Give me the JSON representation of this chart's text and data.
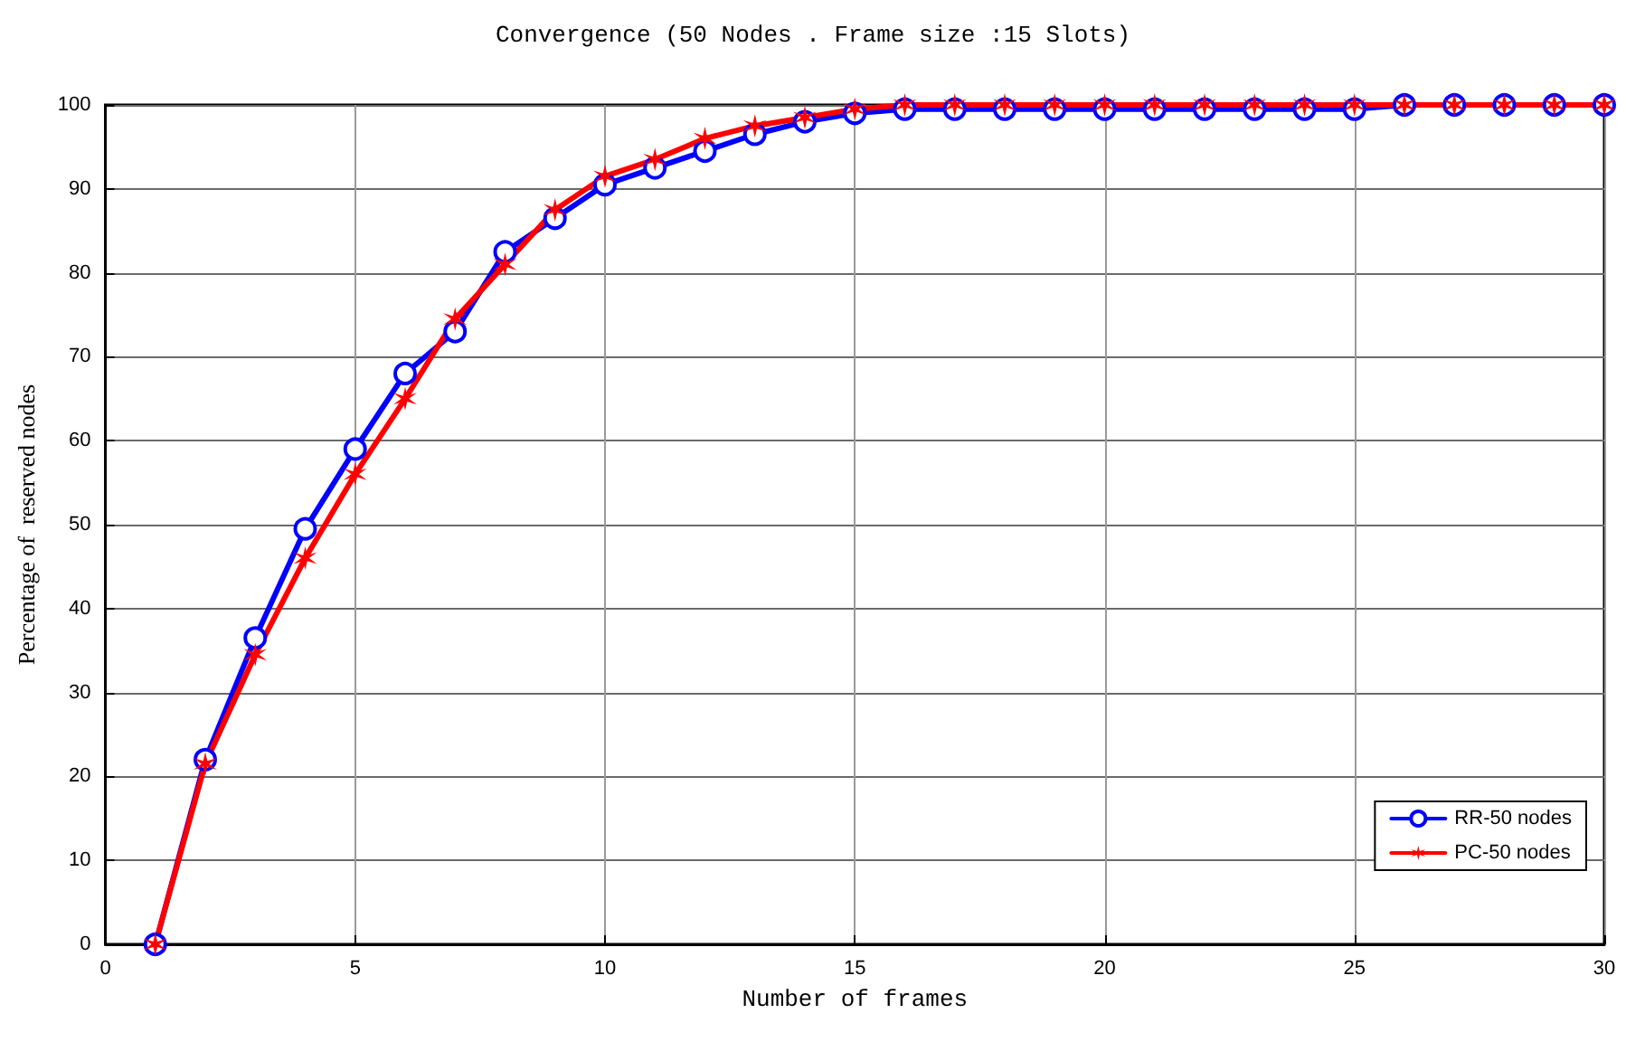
{
  "chart_data": {
    "type": "line",
    "title": "Convergence (50 Nodes . Frame size :15 Slots)",
    "xlabel": "Number of frames",
    "ylabel": "Percentage of  reserved nodes",
    "x": [
      1,
      2,
      3,
      4,
      5,
      6,
      7,
      8,
      9,
      10,
      11,
      12,
      13,
      14,
      15,
      16,
      17,
      18,
      19,
      20,
      21,
      22,
      23,
      24,
      25,
      26,
      27,
      28,
      29,
      30
    ],
    "series": [
      {
        "name": "RR-50 nodes",
        "color": "#0000ff",
        "marker": "circle",
        "values": [
          0,
          22,
          36.5,
          49.5,
          59,
          68,
          73,
          82.5,
          86.5,
          90.5,
          92.5,
          94.5,
          96.5,
          98,
          99,
          99.5,
          99.5,
          99.5,
          99.5,
          99.5,
          99.5,
          99.5,
          99.5,
          99.5,
          99.5,
          100,
          100,
          100,
          100,
          100
        ]
      },
      {
        "name": "PC-50 nodes",
        "color": "#ff0000",
        "marker": "cross",
        "values": [
          0,
          21.5,
          34.5,
          46,
          56,
          65,
          74.5,
          81,
          87.5,
          91.5,
          93.5,
          96,
          97.5,
          98.5,
          99.5,
          100,
          100,
          100,
          100,
          100,
          100,
          100,
          100,
          100,
          100,
          100,
          100,
          100,
          100,
          100
        ]
      }
    ],
    "xlim": [
      0,
      30
    ],
    "xticks": [
      0,
      5,
      10,
      15,
      20,
      25,
      30
    ],
    "ylim": [
      0,
      100
    ],
    "yticks": [
      0,
      10,
      20,
      30,
      40,
      50,
      60,
      70,
      80,
      90,
      100
    ],
    "grid": true,
    "legend": "bottom right",
    "line_style": "solid"
  }
}
